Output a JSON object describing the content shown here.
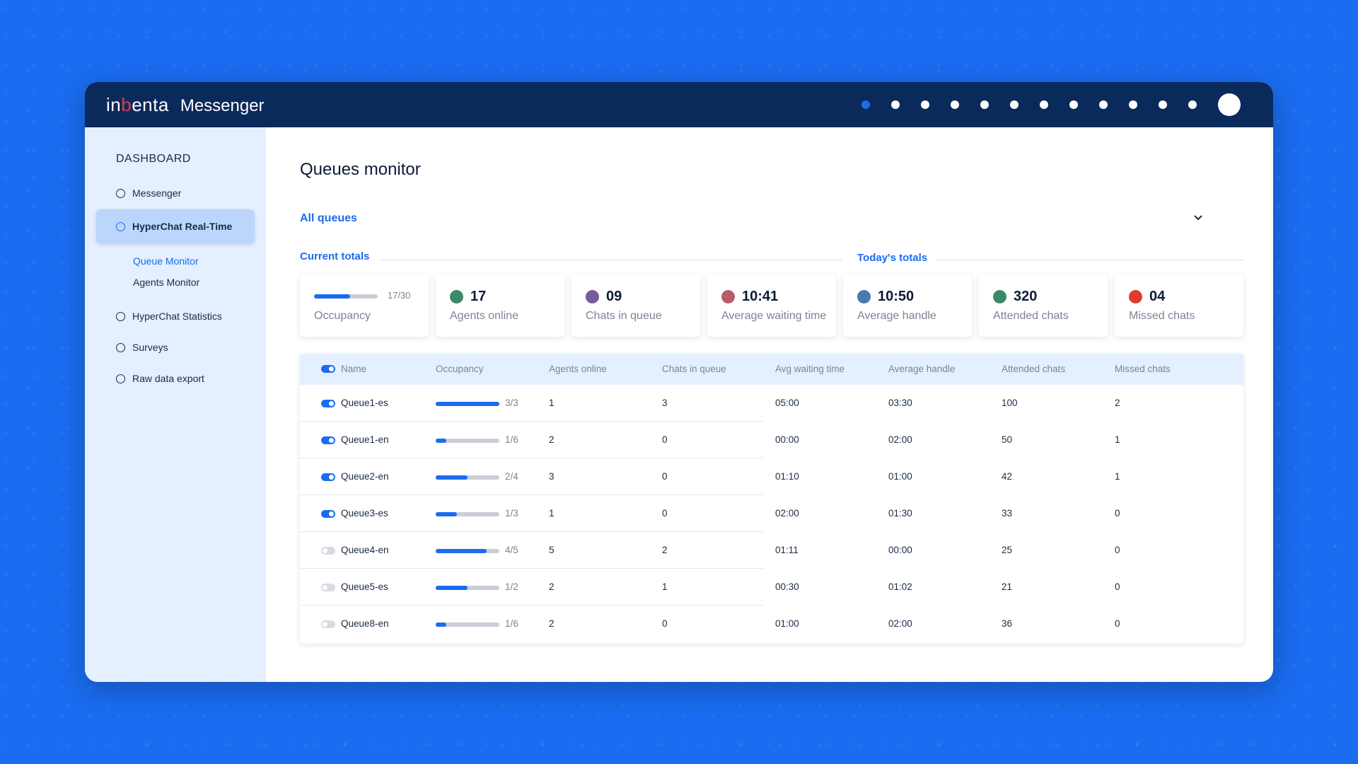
{
  "brand": {
    "logo_pre": "in",
    "logo_mid": "b",
    "logo_post": "enta",
    "app": "Messenger"
  },
  "sidebar": {
    "title": "DASHBOARD",
    "items": [
      {
        "label": "Messenger"
      },
      {
        "label": "HyperChat Real-Time"
      },
      {
        "label": "HyperChat Statistics"
      },
      {
        "label": "Surveys"
      },
      {
        "label": "Raw data export"
      }
    ],
    "subitems": [
      {
        "label": "Queue Monitor"
      },
      {
        "label": "Agents Monitor"
      }
    ]
  },
  "main": {
    "title": "Queues monitor",
    "queue_select": "All queues",
    "current_totals": "Current totals",
    "todays_totals": "Today's totals"
  },
  "cards": {
    "occupancy": {
      "value": "17/30",
      "label": "Occupancy",
      "fraction": 0.57
    },
    "agents": {
      "value": "17",
      "label": "Agents online",
      "color": "#3a8a6a"
    },
    "chats": {
      "value": "09",
      "label": "Chats in queue",
      "color": "#7a5a9e"
    },
    "wait": {
      "value": "10:41",
      "label": "Average waiting time",
      "color": "#b85c6a"
    },
    "handle": {
      "value": "10:50",
      "label": "Average handle",
      "color": "#4a7ab0"
    },
    "attended": {
      "value": "320",
      "label": "Attended chats",
      "color": "#3a8a6a"
    },
    "missed": {
      "value": "04",
      "label": "Missed chats",
      "color": "#e03c2c"
    }
  },
  "table": {
    "headers": [
      "Name",
      "Occupancy",
      "Agents online",
      "Chats in queue",
      "Avg waiting time",
      "Average handle",
      "Attended chats",
      "Missed chats"
    ],
    "rows": [
      {
        "name": "Queue1-es",
        "enabled": true,
        "occ": "3/3",
        "occ_frac": 1.0,
        "agents": "1",
        "chats": "3",
        "wait": "05:00",
        "handle": "03:30",
        "attended": "100",
        "missed": "2"
      },
      {
        "name": "Queue1-en",
        "enabled": true,
        "occ": "1/6",
        "occ_frac": 0.17,
        "agents": "2",
        "chats": "0",
        "wait": "00:00",
        "handle": "02:00",
        "attended": "50",
        "missed": "1"
      },
      {
        "name": "Queue2-en",
        "enabled": true,
        "occ": "2/4",
        "occ_frac": 0.5,
        "agents": "3",
        "chats": "0",
        "wait": "01:10",
        "handle": "01:00",
        "attended": "42",
        "missed": "1"
      },
      {
        "name": "Queue3-es",
        "enabled": true,
        "occ": "1/3",
        "occ_frac": 0.33,
        "agents": "1",
        "chats": "0",
        "wait": "02:00",
        "handle": "01:30",
        "attended": "33",
        "missed": "0"
      },
      {
        "name": "Queue4-en",
        "enabled": false,
        "occ": "4/5",
        "occ_frac": 0.8,
        "agents": "5",
        "chats": "2",
        "wait": "01:11",
        "handle": "00:00",
        "attended": "25",
        "missed": "0"
      },
      {
        "name": "Queue5-es",
        "enabled": false,
        "occ": "1/2",
        "occ_frac": 0.5,
        "agents": "2",
        "chats": "1",
        "wait": "00:30",
        "handle": "01:02",
        "attended": "21",
        "missed": "0"
      },
      {
        "name": "Queue8-en",
        "enabled": false,
        "occ": "1/6",
        "occ_frac": 0.17,
        "agents": "2",
        "chats": "0",
        "wait": "01:00",
        "handle": "02:00",
        "attended": "36",
        "missed": "0"
      }
    ]
  }
}
